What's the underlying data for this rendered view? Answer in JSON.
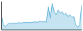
{
  "chart_data": {
    "type": "area",
    "categories": [
      null,
      null,
      null,
      null,
      null,
      null,
      null,
      null,
      null,
      null,
      null,
      null,
      null,
      null,
      null,
      null,
      null,
      null,
      null,
      null,
      null,
      null,
      null,
      null,
      null,
      null,
      null,
      null,
      null,
      null,
      null,
      null,
      null,
      null,
      null,
      null,
      null,
      null,
      null,
      null,
      null,
      null
    ],
    "values": [
      18000,
      6000,
      4000,
      6000,
      8000,
      7000,
      8000,
      7500,
      8000,
      8500,
      8000,
      8500,
      9000,
      8500,
      9000,
      8500,
      9000,
      9500,
      9000,
      9500,
      10000,
      9500,
      10000,
      9000,
      28000,
      14000,
      32000,
      22000,
      18000,
      24000,
      20000,
      22000,
      18000,
      20000,
      16000,
      18000,
      15000,
      16000,
      6000,
      3000,
      5000,
      30000
    ],
    "color": "#5bafd6",
    "ylim": [
      0,
      34560
    ],
    "tick_labels": false
  }
}
